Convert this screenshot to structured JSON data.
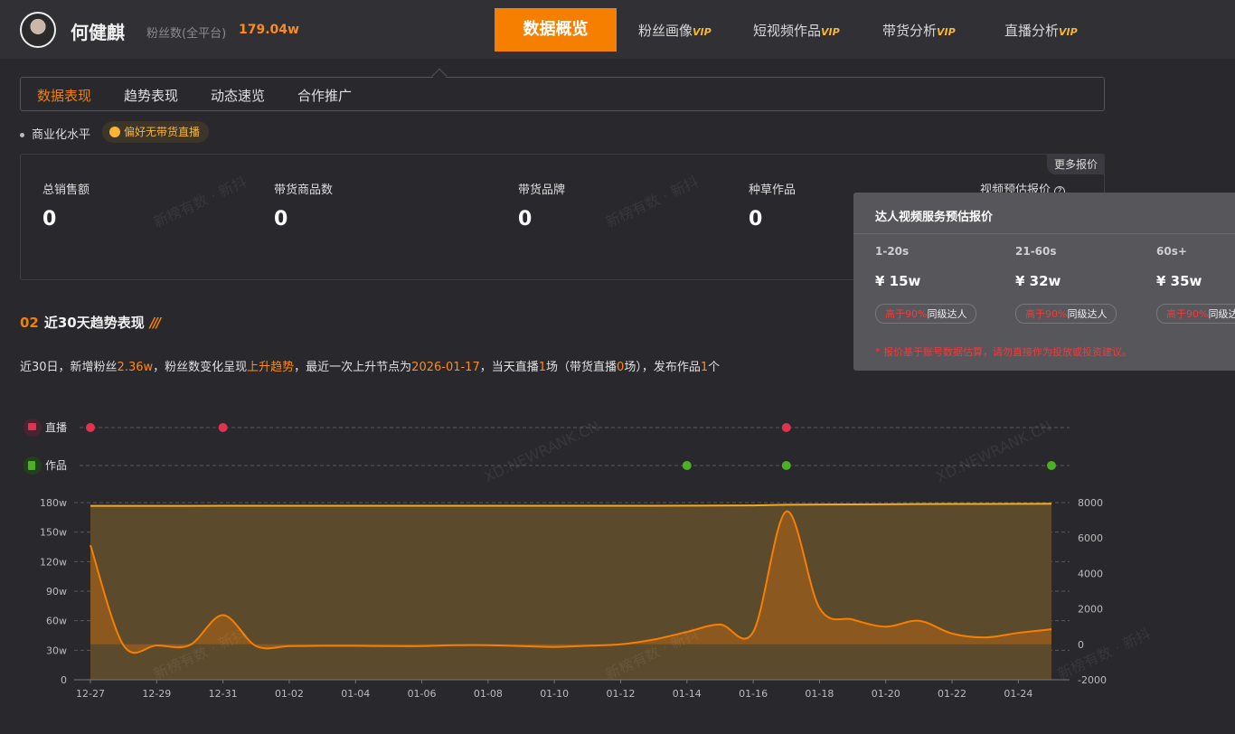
{
  "header": {
    "name": "何健麒",
    "fans_label": "粉丝数(全平台)",
    "fans_value": "179.04w",
    "nav": [
      {
        "label": "数据概览",
        "vip": ""
      },
      {
        "label": "粉丝画像",
        "vip": "VIP"
      },
      {
        "label": "短视频作品",
        "vip": "VIP"
      },
      {
        "label": "带货分析",
        "vip": "VIP"
      },
      {
        "label": "直播分析",
        "vip": "VIP"
      }
    ]
  },
  "tabs": [
    "数据表现",
    "趋势表现",
    "动态速览",
    "合作推广"
  ],
  "commercial": {
    "label": "商业化水平",
    "badge": "偏好无带货直播"
  },
  "stats": [
    {
      "label": "总销售额",
      "value": "0"
    },
    {
      "label": "带货商品数",
      "value": "0"
    },
    {
      "label": "带货品牌",
      "value": "0"
    },
    {
      "label": "种草作品",
      "value": "0"
    },
    {
      "label": "视频预估报价",
      "value": ""
    }
  ],
  "more_quotes": "更多报价",
  "popover": {
    "title": "达人视频服务预估报价",
    "cols": [
      {
        "range": "1-20s",
        "price": "¥ 15w",
        "tag_hl": "高于90%",
        "tag": "同级达人"
      },
      {
        "range": "21-60s",
        "price": "¥ 32w",
        "tag_hl": "高于90%",
        "tag": "同级达人"
      },
      {
        "range": "60s+",
        "price": "¥ 35w",
        "tag_hl": "高于90%",
        "tag": "同级达人"
      }
    ],
    "note": "* 报价基于账号数据估算，请勿直接作为投放或投资建议。"
  },
  "section": {
    "num": "02",
    "title": "近30天趋势表现"
  },
  "summary": {
    "p1": "近30日，新增粉丝",
    "fans_gain": "2.36w",
    "p2": "，粉丝数变化呈现",
    "trend": "上升趋势",
    "p3": "，最近一次上升节点为",
    "date": "2026-01-17",
    "p4": "，当天直播",
    "live": "1",
    "p5": "场（带货直播",
    "sale_live": "0",
    "p6": "场），发布作品",
    "works": "1",
    "p7": "个"
  },
  "watermarks": [
    "新榜有数 · 新抖",
    "XD.NEWRANK.CN"
  ],
  "colors": {
    "accent": "#f77f00",
    "vip": "#f6b533",
    "live": "#e0334f",
    "works": "#4caf25",
    "area": "#5c4a2d"
  },
  "chart_data": {
    "type": "line",
    "markers": [
      {
        "name": "直播",
        "color": "#e0334f",
        "dates": [
          "12-27",
          "12-31",
          "01-17"
        ]
      },
      {
        "name": "作品",
        "color": "#4caf25",
        "dates": [
          "01-14",
          "01-17",
          "01-25"
        ]
      }
    ],
    "x": [
      "12-27",
      "12-28",
      "12-29",
      "12-30",
      "12-31",
      "01-01",
      "01-02",
      "01-03",
      "01-04",
      "01-05",
      "01-06",
      "01-07",
      "01-08",
      "01-09",
      "01-10",
      "01-11",
      "01-12",
      "01-13",
      "01-14",
      "01-15",
      "01-16",
      "01-17",
      "01-18",
      "01-19",
      "01-20",
      "01-21",
      "01-22",
      "01-23",
      "01-24",
      "01-25"
    ],
    "x_ticks": [
      "12-27",
      "12-29",
      "12-31",
      "01-02",
      "01-04",
      "01-06",
      "01-08",
      "01-10",
      "01-12",
      "01-14",
      "01-16",
      "01-18",
      "01-20",
      "01-22",
      "01-24"
    ],
    "left_axis": {
      "ticks": [
        "0",
        "30w",
        "60w",
        "90w",
        "120w",
        "150w",
        "180w"
      ],
      "range": [
        0,
        180
      ]
    },
    "right_axis": {
      "ticks": [
        "-2000",
        "0",
        "2000",
        "4000",
        "6000",
        "8000"
      ],
      "range": [
        -2000,
        8000
      ]
    },
    "series": [
      {
        "axis": "left",
        "unit": "w",
        "style": "area",
        "values": [
          176.7,
          176.7,
          176.7,
          176.7,
          176.8,
          176.8,
          176.8,
          176.8,
          176.8,
          176.8,
          176.8,
          176.8,
          176.8,
          176.8,
          176.8,
          176.8,
          176.8,
          176.8,
          176.9,
          177.0,
          177.1,
          177.8,
          178.0,
          178.2,
          178.3,
          178.5,
          178.6,
          178.6,
          178.7,
          178.8
        ]
      },
      {
        "axis": "right",
        "style": "line",
        "values": [
          5600,
          -60,
          -60,
          -40,
          1650,
          -100,
          -100,
          -80,
          -80,
          -100,
          -100,
          -50,
          -50,
          -100,
          -150,
          -80,
          0,
          270,
          700,
          1120,
          700,
          7500,
          2050,
          1400,
          1000,
          1330,
          610,
          390,
          650,
          850
        ]
      }
    ],
    "grid": true
  }
}
